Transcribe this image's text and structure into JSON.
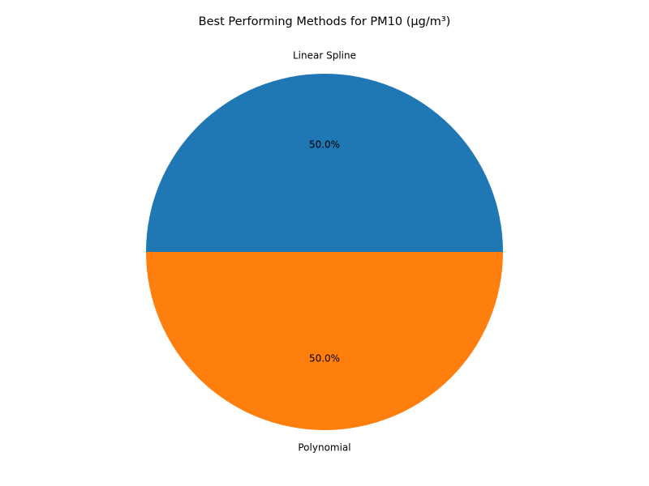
{
  "chart_data": {
    "type": "pie",
    "title": "Best Performing Methods for PM10 (μg/m³)",
    "categories": [
      "Linear Spline",
      "Polynomial"
    ],
    "values": [
      50.0,
      50.0
    ],
    "percent_labels": [
      "50.0%",
      "50.0%"
    ],
    "colors": [
      "#1f77b4",
      "#ff7f0e"
    ],
    "start_angle_deg": 0,
    "direction": "counterclockwise",
    "legend": "none"
  }
}
